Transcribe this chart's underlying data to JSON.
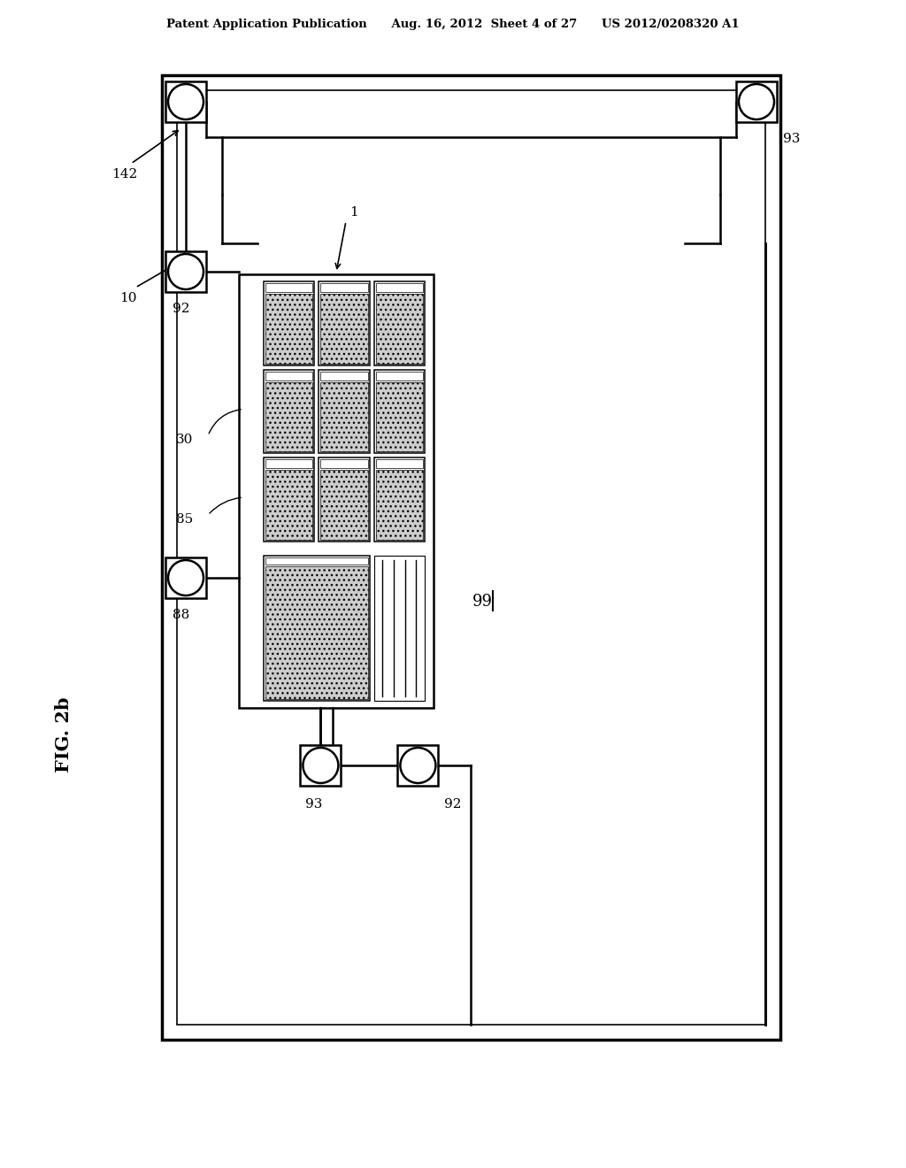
{
  "bg_color": "#ffffff",
  "line_color": "#000000",
  "fig_width": 10.24,
  "fig_height": 13.2,
  "header": "Patent Application Publication      Aug. 16, 2012  Sheet 4 of 27      US 2012/0208320 A1",
  "fig_label": "FIG. 2b",
  "label_142": "142",
  "label_10": "10",
  "label_99": "99",
  "label_1": "1",
  "label_92": "92",
  "label_93": "93",
  "label_88": "88",
  "label_85": "85",
  "label_30": "30"
}
